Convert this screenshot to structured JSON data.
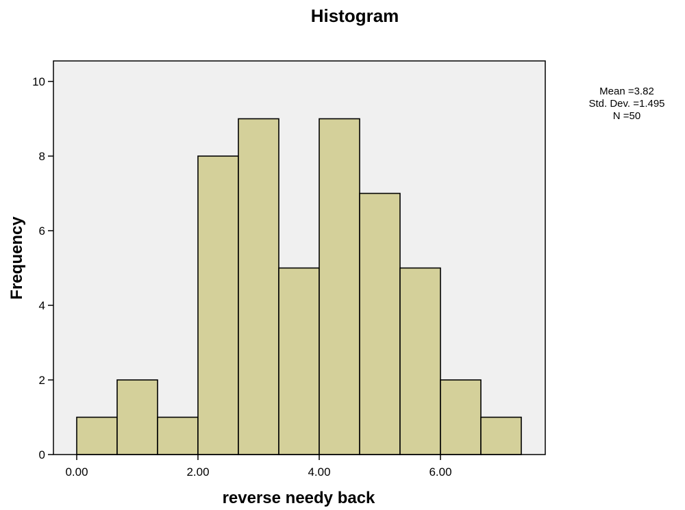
{
  "chart_data": {
    "type": "bar",
    "title": "Histogram",
    "xlabel": "reverse needy back",
    "ylabel": "Frequency",
    "bin_width": 0.6667,
    "bin_start": 0.0,
    "bins": [
      {
        "start": 0.0,
        "end": 0.6667,
        "count": 1
      },
      {
        "start": 0.6667,
        "end": 1.3333,
        "count": 2
      },
      {
        "start": 1.3333,
        "end": 2.0,
        "count": 1
      },
      {
        "start": 2.0,
        "end": 2.6667,
        "count": 8
      },
      {
        "start": 2.6667,
        "end": 3.3333,
        "count": 9
      },
      {
        "start": 3.3333,
        "end": 4.0,
        "count": 5
      },
      {
        "start": 4.0,
        "end": 4.6667,
        "count": 9
      },
      {
        "start": 4.6667,
        "end": 5.3333,
        "count": 7
      },
      {
        "start": 5.3333,
        "end": 6.0,
        "count": 5
      },
      {
        "start": 6.0,
        "end": 6.6667,
        "count": 2
      },
      {
        "start": 6.6667,
        "end": 7.3333,
        "count": 1
      }
    ],
    "xlim": [
      -0.5,
      8.0
    ],
    "ylim": [
      0,
      10.5
    ],
    "x_ticks": [
      0,
      2,
      4,
      6
    ],
    "x_tick_labels": [
      "0.00",
      "2.00",
      "4.00",
      "6.00"
    ],
    "y_ticks": [
      0,
      2,
      4,
      6,
      8,
      10
    ],
    "y_tick_labels": [
      "0",
      "2",
      "4",
      "6",
      "8",
      "10"
    ],
    "grid": false,
    "stats": {
      "mean": "Mean =3.82",
      "std_dev": "Std. Dev. =1.495",
      "n": "N =50"
    },
    "colors": {
      "bar_fill": "#d4d09a",
      "bar_stroke": "#000000",
      "plot_background": "#f0f0f0"
    }
  }
}
